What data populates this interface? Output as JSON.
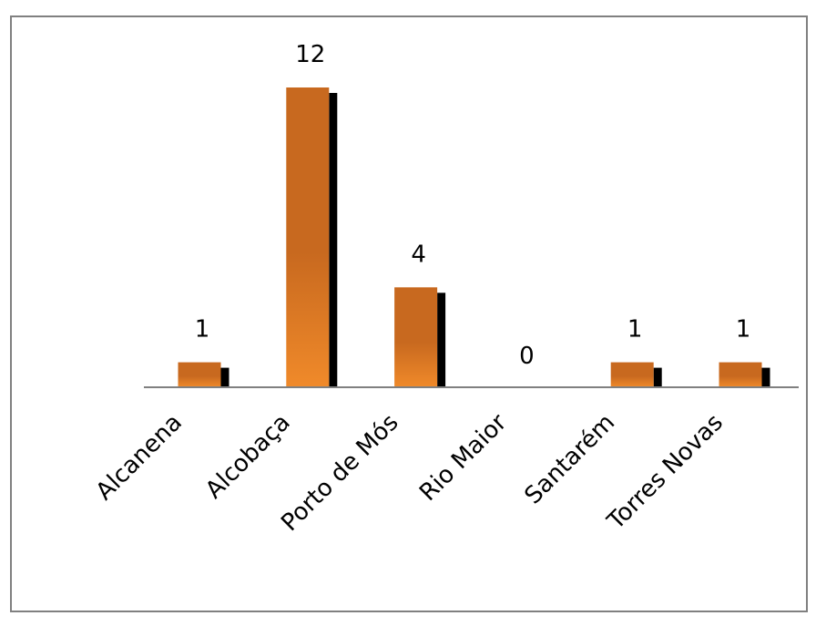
{
  "chart_data": {
    "type": "bar",
    "categories": [
      "Alcanena",
      "Alcobaça",
      "Porto de Mós",
      "Rio Maior",
      "Santarém",
      "Torres Novas"
    ],
    "values": [
      1,
      12,
      4,
      0,
      1,
      1
    ],
    "data_labels": [
      "1",
      "12",
      "4",
      "0",
      "1",
      "1"
    ],
    "title": "",
    "xlabel": "",
    "ylabel": "",
    "ylim": [
      0,
      12
    ],
    "grid": false,
    "legend": "none",
    "category_label_rotation": -45,
    "colors": {
      "bar_top": "#C8691F",
      "bar_bottom": "#F08A2A",
      "bar_shadow": "#000000",
      "axis": "#808080",
      "frame": "#808080"
    }
  }
}
